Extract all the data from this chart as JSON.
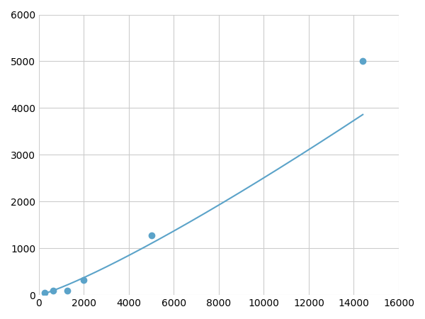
{
  "x_data": [
    250,
    625,
    1250,
    2000,
    5000,
    14400
  ],
  "y_data": [
    50,
    100,
    100,
    320,
    1280,
    5000
  ],
  "line_color": "#5BA3C9",
  "marker_color": "#5BA3C9",
  "marker_size": 6,
  "xlim": [
    0,
    16000
  ],
  "ylim": [
    0,
    6000
  ],
  "xticks": [
    0,
    2000,
    4000,
    6000,
    8000,
    10000,
    12000,
    14000,
    16000
  ],
  "yticks": [
    0,
    1000,
    2000,
    3000,
    4000,
    5000,
    6000
  ],
  "grid_color": "#cccccc",
  "background_color": "#ffffff",
  "figsize": [
    6.0,
    4.5
  ],
  "dpi": 100
}
